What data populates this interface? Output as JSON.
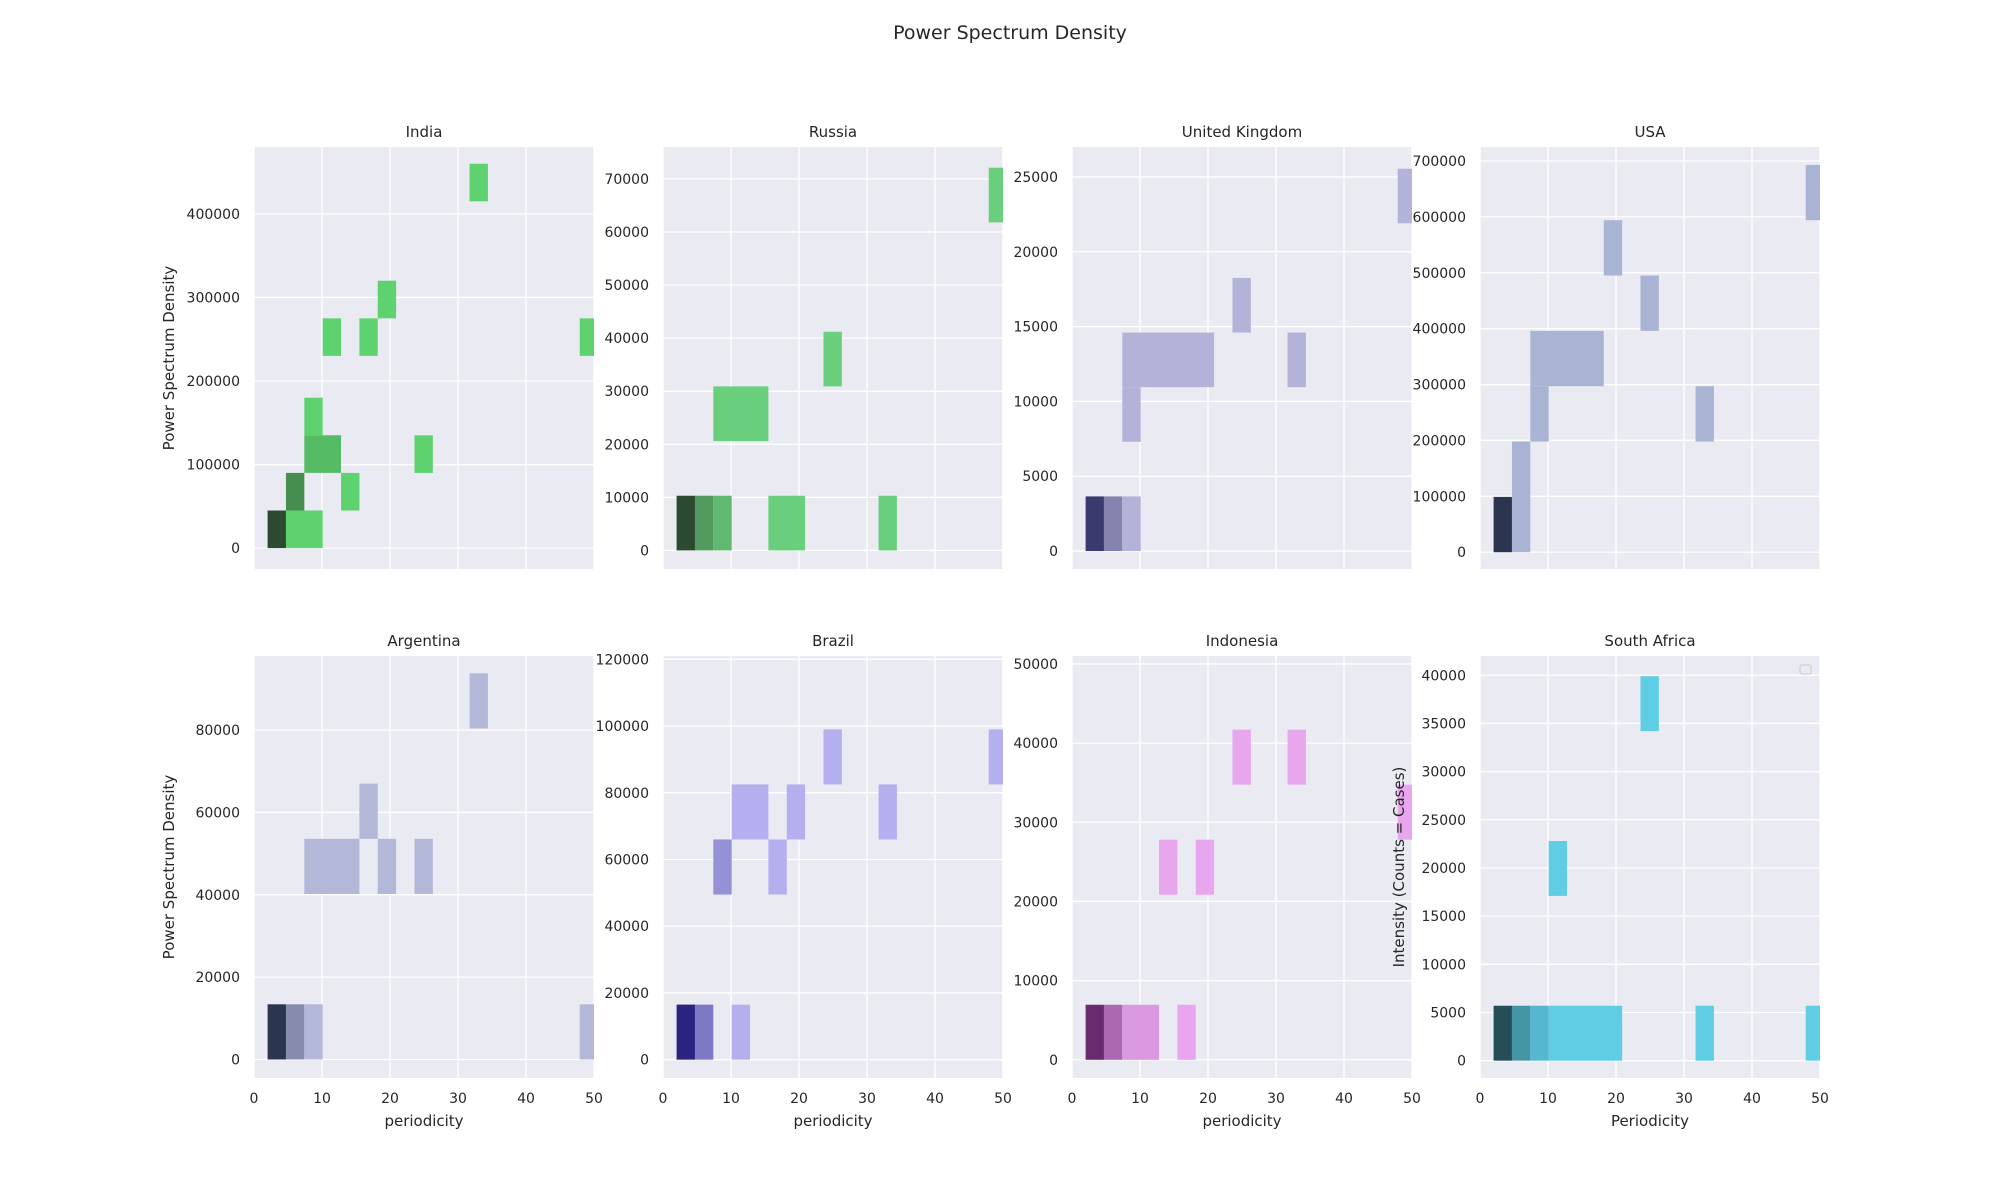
{
  "figure": {
    "title": "Power Spectrum Density"
  },
  "chart_data": [
    {
      "type": "heatmap",
      "title": "India",
      "xlabel": "",
      "ylabel": "Power Spectrum Density",
      "xlim": [
        0,
        50
      ],
      "ylim": [
        -25000,
        480000
      ],
      "x_ticks": [],
      "y_ticks": [
        0,
        100000,
        200000,
        300000,
        400000
      ],
      "color": "#5fd270",
      "dark": "#2b4a30",
      "bin_width": 2.7,
      "bin_height": 45000,
      "cells": [
        {
          "x": 2.0,
          "y": 0,
          "w": 2.7,
          "h": 45000,
          "shade": 1.0
        },
        {
          "x": 4.7,
          "y": 0,
          "w": 5.4,
          "h": 45000,
          "shade": 0.1
        },
        {
          "x": 4.7,
          "y": 45000,
          "w": 2.7,
          "h": 45000,
          "shade": 0.55
        },
        {
          "x": 7.4,
          "y": 90000,
          "w": 5.4,
          "h": 45000,
          "shade": 0.25
        },
        {
          "x": 7.4,
          "y": 135000,
          "w": 2.7,
          "h": 45000,
          "shade": 0.1
        },
        {
          "x": 12.8,
          "y": 45000,
          "w": 2.7,
          "h": 45000,
          "shade": 0.1
        },
        {
          "x": 10.1,
          "y": 230000,
          "w": 2.7,
          "h": 45000,
          "shade": 0.1
        },
        {
          "x": 15.5,
          "y": 230000,
          "w": 2.7,
          "h": 45000,
          "shade": 0.1
        },
        {
          "x": 18.2,
          "y": 275000,
          "w": 2.7,
          "h": 45000,
          "shade": 0.1
        },
        {
          "x": 23.6,
          "y": 90000,
          "w": 2.7,
          "h": 45000,
          "shade": 0.1
        },
        {
          "x": 31.7,
          "y": 415000,
          "w": 2.7,
          "h": 45000,
          "shade": 0.1
        },
        {
          "x": 47.9,
          "y": 230000,
          "w": 2.1,
          "h": 45000,
          "shade": 0.1
        }
      ]
    },
    {
      "type": "heatmap",
      "title": "Russia",
      "xlabel": "",
      "ylabel": "",
      "xlim": [
        0,
        50
      ],
      "ylim": [
        -3500,
        76000
      ],
      "x_ticks": [],
      "y_ticks": [
        0,
        10000,
        20000,
        30000,
        40000,
        50000,
        60000,
        70000
      ],
      "color": "#6acf7c",
      "dark": "#2b4a30",
      "bin_width": 2.7,
      "bin_height": 10300,
      "cells": [
        {
          "x": 2.0,
          "y": 0,
          "w": 2.7,
          "h": 10300,
          "shade": 1.0
        },
        {
          "x": 4.7,
          "y": 0,
          "w": 2.7,
          "h": 10300,
          "shade": 0.45
        },
        {
          "x": 7.4,
          "y": 0,
          "w": 2.7,
          "h": 10300,
          "shade": 0.25
        },
        {
          "x": 7.4,
          "y": 20600,
          "w": 8.1,
          "h": 10300,
          "shade": 0.1
        },
        {
          "x": 15.5,
          "y": 0,
          "w": 5.4,
          "h": 10300,
          "shade": 0.1
        },
        {
          "x": 23.6,
          "y": 30900,
          "w": 2.7,
          "h": 10300,
          "shade": 0.1
        },
        {
          "x": 31.7,
          "y": 0,
          "w": 2.7,
          "h": 10300,
          "shade": 0.1
        },
        {
          "x": 47.9,
          "y": 61800,
          "w": 2.1,
          "h": 10300,
          "shade": 0.1
        }
      ]
    },
    {
      "type": "heatmap",
      "title": "United Kingdom",
      "xlabel": "",
      "ylabel": "",
      "xlim": [
        0,
        50
      ],
      "ylim": [
        -1200,
        27000
      ],
      "x_ticks": [],
      "y_ticks": [
        0,
        5000,
        10000,
        15000,
        20000,
        25000
      ],
      "color": "#b3b3d9",
      "dark": "#3a3a6e",
      "bin_width": 2.7,
      "bin_height": 3650,
      "cells": [
        {
          "x": 2.0,
          "y": 0,
          "w": 2.7,
          "h": 3650,
          "shade": 1.0
        },
        {
          "x": 4.7,
          "y": 0,
          "w": 2.7,
          "h": 3650,
          "shade": 0.45
        },
        {
          "x": 7.4,
          "y": 0,
          "w": 2.7,
          "h": 3650,
          "shade": 0.1
        },
        {
          "x": 7.4,
          "y": 7300,
          "w": 2.7,
          "h": 3650,
          "shade": 0.1
        },
        {
          "x": 7.4,
          "y": 10950,
          "w": 13.5,
          "h": 3650,
          "shade": 0.1
        },
        {
          "x": 23.6,
          "y": 14600,
          "w": 2.7,
          "h": 3650,
          "shade": 0.1
        },
        {
          "x": 31.7,
          "y": 10950,
          "w": 2.7,
          "h": 3650,
          "shade": 0.1
        },
        {
          "x": 47.9,
          "y": 21900,
          "w": 2.1,
          "h": 3650,
          "shade": 0.1
        }
      ]
    },
    {
      "type": "heatmap",
      "title": "USA",
      "xlabel": "",
      "ylabel": "",
      "xlim": [
        0,
        50
      ],
      "ylim": [
        -30000,
        725000
      ],
      "x_ticks": [],
      "y_ticks": [
        0,
        100000,
        200000,
        300000,
        400000,
        500000,
        600000,
        700000
      ],
      "color": "#a9b4d4",
      "dark": "#2b3550",
      "bin_width": 2.7,
      "bin_height": 99000,
      "cells": [
        {
          "x": 2.0,
          "y": 0,
          "w": 2.7,
          "h": 99000,
          "shade": 1.0
        },
        {
          "x": 4.7,
          "y": 0,
          "w": 2.7,
          "h": 198000,
          "shade": 0.1
        },
        {
          "x": 7.4,
          "y": 198000,
          "w": 2.7,
          "h": 99000,
          "shade": 0.1
        },
        {
          "x": 7.4,
          "y": 297000,
          "w": 10.8,
          "h": 99000,
          "shade": 0.1
        },
        {
          "x": 18.2,
          "y": 495000,
          "w": 2.7,
          "h": 99000,
          "shade": 0.1
        },
        {
          "x": 23.6,
          "y": 396000,
          "w": 2.7,
          "h": 99000,
          "shade": 0.1
        },
        {
          "x": 31.7,
          "y": 198000,
          "w": 2.7,
          "h": 99000,
          "shade": 0.1
        },
        {
          "x": 47.9,
          "y": 594000,
          "w": 2.1,
          "h": 99000,
          "shade": 0.1
        }
      ]
    },
    {
      "type": "heatmap",
      "title": "Argentina",
      "xlabel": "periodicity",
      "ylabel": "Power Spectrum Density",
      "xlim": [
        0,
        50
      ],
      "ylim": [
        -4500,
        98000
      ],
      "x_ticks": [
        0,
        10,
        20,
        30,
        40,
        50
      ],
      "y_ticks": [
        0,
        20000,
        40000,
        60000,
        80000
      ],
      "color": "#b3b8d8",
      "dark": "#2b3550",
      "bin_width": 2.7,
      "bin_height": 13400,
      "cells": [
        {
          "x": 2.0,
          "y": 0,
          "w": 2.7,
          "h": 13400,
          "shade": 1.0
        },
        {
          "x": 4.7,
          "y": 0,
          "w": 2.7,
          "h": 13400,
          "shade": 0.4
        },
        {
          "x": 7.4,
          "y": 0,
          "w": 2.7,
          "h": 13400,
          "shade": 0.1
        },
        {
          "x": 7.4,
          "y": 40200,
          "w": 8.1,
          "h": 13400,
          "shade": 0.1
        },
        {
          "x": 15.5,
          "y": 53600,
          "w": 2.7,
          "h": 13400,
          "shade": 0.1
        },
        {
          "x": 18.2,
          "y": 40200,
          "w": 2.7,
          "h": 13400,
          "shade": 0.1
        },
        {
          "x": 23.6,
          "y": 40200,
          "w": 2.7,
          "h": 13400,
          "shade": 0.1
        },
        {
          "x": 31.7,
          "y": 80400,
          "w": 2.7,
          "h": 13400,
          "shade": 0.1
        },
        {
          "x": 47.9,
          "y": 0,
          "w": 2.1,
          "h": 13400,
          "shade": 0.1
        }
      ]
    },
    {
      "type": "heatmap",
      "title": "Brazil",
      "xlabel": "periodicity",
      "ylabel": "",
      "xlim": [
        0,
        50
      ],
      "ylim": [
        -5500,
        121000
      ],
      "x_ticks": [
        0,
        10,
        20,
        30,
        40,
        50
      ],
      "y_ticks": [
        0,
        20000,
        40000,
        60000,
        80000,
        100000,
        120000
      ],
      "color": "#b4b0f0",
      "dark": "#2a2380",
      "bin_width": 2.7,
      "bin_height": 16500,
      "cells": [
        {
          "x": 2.0,
          "y": 0,
          "w": 2.7,
          "h": 16500,
          "shade": 1.0
        },
        {
          "x": 4.7,
          "y": 0,
          "w": 2.7,
          "h": 16500,
          "shade": 0.45
        },
        {
          "x": 10.1,
          "y": 0,
          "w": 2.7,
          "h": 16500,
          "shade": 0.1
        },
        {
          "x": 7.4,
          "y": 49500,
          "w": 2.7,
          "h": 16500,
          "shade": 0.3
        },
        {
          "x": 10.1,
          "y": 66000,
          "w": 5.4,
          "h": 16500,
          "shade": 0.1
        },
        {
          "x": 15.5,
          "y": 49500,
          "w": 2.7,
          "h": 16500,
          "shade": 0.1
        },
        {
          "x": 18.2,
          "y": 66000,
          "w": 2.7,
          "h": 16500,
          "shade": 0.1
        },
        {
          "x": 23.6,
          "y": 82500,
          "w": 2.7,
          "h": 16500,
          "shade": 0.1
        },
        {
          "x": 31.7,
          "y": 66000,
          "w": 2.7,
          "h": 16500,
          "shade": 0.1
        },
        {
          "x": 47.9,
          "y": 82500,
          "w": 2.1,
          "h": 16500,
          "shade": 0.1
        }
      ]
    },
    {
      "type": "heatmap",
      "title": "Indonesia",
      "xlabel": "periodicity",
      "ylabel": "",
      "xlim": [
        0,
        50
      ],
      "ylim": [
        -2300,
        51000
      ],
      "x_ticks": [
        0,
        10,
        20,
        30,
        40,
        50
      ],
      "y_ticks": [
        0,
        10000,
        20000,
        30000,
        40000,
        50000
      ],
      "color": "#e8a6ee",
      "dark": "#6a2a70",
      "bin_width": 2.7,
      "bin_height": 6950,
      "cells": [
        {
          "x": 2.0,
          "y": 0,
          "w": 2.7,
          "h": 6950,
          "shade": 1.0
        },
        {
          "x": 4.7,
          "y": 0,
          "w": 2.7,
          "h": 6950,
          "shade": 0.55
        },
        {
          "x": 7.4,
          "y": 0,
          "w": 5.4,
          "h": 6950,
          "shade": 0.2
        },
        {
          "x": 15.5,
          "y": 0,
          "w": 2.7,
          "h": 6950,
          "shade": 0.1
        },
        {
          "x": 12.8,
          "y": 20850,
          "w": 2.7,
          "h": 6950,
          "shade": 0.1
        },
        {
          "x": 18.2,
          "y": 20850,
          "w": 2.7,
          "h": 6950,
          "shade": 0.1
        },
        {
          "x": 23.6,
          "y": 34750,
          "w": 2.7,
          "h": 6950,
          "shade": 0.1
        },
        {
          "x": 31.7,
          "y": 34750,
          "w": 2.7,
          "h": 6950,
          "shade": 0.1
        },
        {
          "x": 47.9,
          "y": 27800,
          "w": 2.1,
          "h": 6950,
          "shade": 0.1
        }
      ]
    },
    {
      "type": "heatmap",
      "title": "South Africa",
      "xlabel": "Periodicity",
      "ylabel": "Intensity (Counts = Cases)",
      "xlim": [
        0,
        50
      ],
      "ylim": [
        -1800,
        42000
      ],
      "x_ticks": [
        0,
        10,
        20,
        30,
        40,
        50
      ],
      "y_ticks": [
        0,
        5000,
        10000,
        15000,
        20000,
        25000,
        30000,
        35000,
        40000
      ],
      "color": "#5fcde3",
      "dark": "#254e56",
      "bin_width": 2.7,
      "bin_height": 5700,
      "legend": "top-right",
      "cells": [
        {
          "x": 2.0,
          "y": 0,
          "w": 2.7,
          "h": 5700,
          "shade": 1.0
        },
        {
          "x": 4.7,
          "y": 0,
          "w": 2.7,
          "h": 5700,
          "shade": 0.5
        },
        {
          "x": 7.4,
          "y": 0,
          "w": 2.7,
          "h": 5700,
          "shade": 0.25
        },
        {
          "x": 10.1,
          "y": 0,
          "w": 10.8,
          "h": 5700,
          "shade": 0.1
        },
        {
          "x": 10.1,
          "y": 17100,
          "w": 2.7,
          "h": 5700,
          "shade": 0.1
        },
        {
          "x": 23.6,
          "y": 34200,
          "w": 2.7,
          "h": 5700,
          "shade": 0.1
        },
        {
          "x": 31.7,
          "y": 0,
          "w": 2.7,
          "h": 5700,
          "shade": 0.1
        },
        {
          "x": 47.9,
          "y": 0,
          "w": 2.1,
          "h": 5700,
          "shade": 0.1
        }
      ]
    }
  ]
}
